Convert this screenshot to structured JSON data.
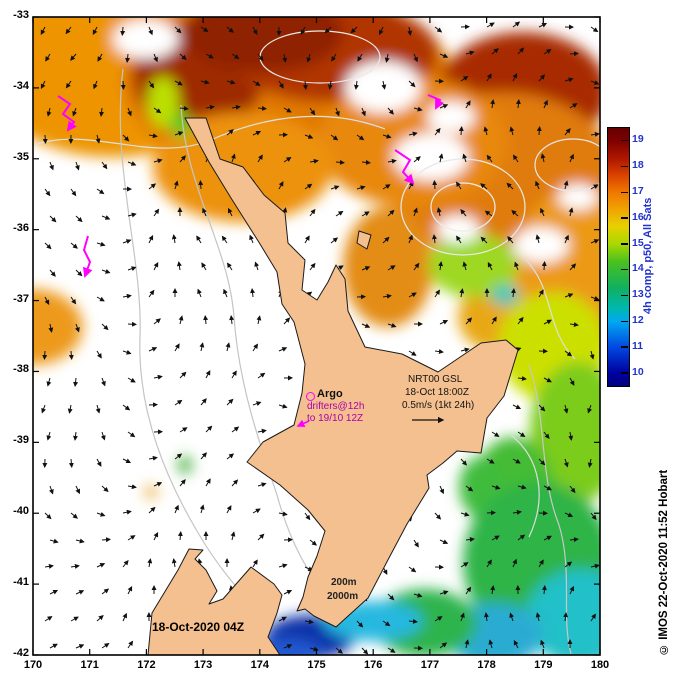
{
  "chart_data": {
    "type": "heatmap",
    "variable": "sea surface temperature (deg C), New Zealand North Island region",
    "x_range_lon_e": [
      170,
      180
    ],
    "y_range_lat": [
      -42,
      -33
    ],
    "x_tick_values": [
      170,
      171,
      172,
      173,
      174,
      175,
      176,
      177,
      178,
      179,
      180
    ],
    "y_tick_values": [
      -33,
      -34,
      -35,
      -36,
      -37,
      -38,
      -39,
      -40,
      -41,
      -42
    ],
    "colorbar": {
      "min": 10,
      "max": 19,
      "ticks": [
        19,
        18,
        17,
        16,
        15,
        14,
        13,
        12,
        11,
        10
      ],
      "label": "4h comp, p50, All Sats",
      "position": "right"
    },
    "regions_estimated": [
      {
        "area": "north and northeast of North Island, lat -33 to -36",
        "sst_c": "18 to 19.5"
      },
      {
        "area": "northwest corner 170-172E, -33 to -35",
        "sst_c": "17 to 18"
      },
      {
        "area": "left edge patch near 170E, -37.3",
        "sst_c": "17"
      },
      {
        "area": "east of East Cape 178.5-180E, -37 to -39",
        "sst_c": "15 to 16.5"
      },
      {
        "area": "southeast sector 177-180E, -39 to -42",
        "sst_c": "13.5 to 15"
      },
      {
        "area": "cyan patches far southeast 179-180E, -41 to -42",
        "sst_c": "12 to 13"
      },
      {
        "area": "south of Cook Strait 174.5-176E, -41.5 to -42",
        "sst_c": "10 to 12"
      },
      {
        "area": "central and western Tasman Sea",
        "sst_c": "no data (white / cloud)"
      }
    ],
    "overlays": [
      "surface current vectors, black arrows, scale 0.5 m/s = (1kt 24h)",
      "sea surface height contours, light gray",
      "200m and 2000m isobaths, gray",
      "Argo float position, magenta circle",
      "drifter tracks @12h to 19/10 12Z, magenta"
    ]
  },
  "axes": {
    "x_ticks": [
      "170",
      "171",
      "172",
      "173",
      "174",
      "175",
      "176",
      "177",
      "178",
      "179",
      "180"
    ],
    "y_ticks": [
      "-33",
      "-34",
      "-35",
      "-36",
      "-37",
      "-38",
      "-39",
      "-40",
      "-41",
      "-42"
    ]
  },
  "colorbar": {
    "ticks": [
      "19",
      "18",
      "17",
      "16",
      "15",
      "14",
      "13",
      "12",
      "11",
      "10"
    ],
    "label": "4h comp, p50, All Sats"
  },
  "annotations": {
    "argo": "Argo",
    "drifters_line1": "drifters@12h",
    "drifters_line2": "to 19/10 12Z",
    "nrt_line1": "NRT00 GSL",
    "nrt_line2": "18-Oct 18:00Z",
    "nrt_line3": "0.5m/s (1kt 24h)",
    "isobath_200": "200m",
    "isobath_2000": "2000m",
    "date_label": "18-Oct-2020 04Z",
    "credit": "© IMOS 22-Oct-2020 11:52 Hobart"
  },
  "colors": {
    "land": "#F5C08F",
    "warm_max": "#650000",
    "cold_min": "#000080",
    "track_magenta": "#FF00FF",
    "colorbar_text": "#2233CC"
  }
}
